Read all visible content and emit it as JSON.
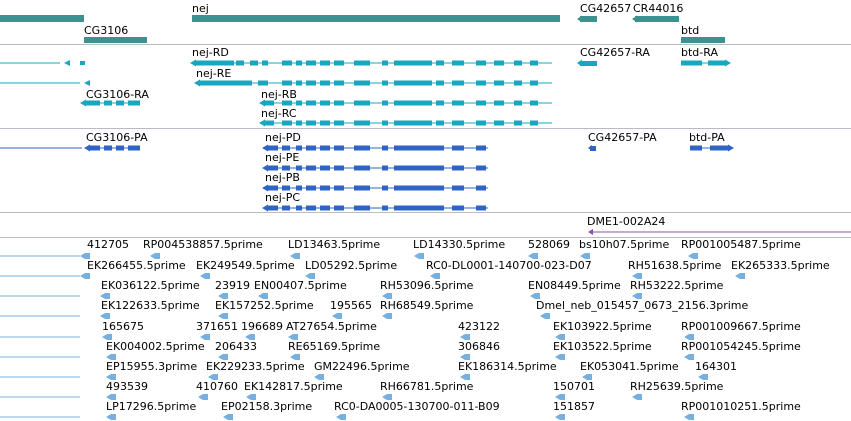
{
  "colors": {
    "gene": "#3f918f",
    "transcript": "#1ba6bf",
    "protein": "#2f63c4",
    "feature": "#8b4fb0",
    "est": "#77b0df",
    "separator": "#b9bcc3"
  },
  "genes": {
    "labels": [
      "nej",
      "CG3106",
      "CG42657",
      "CR44016",
      "btd"
    ]
  },
  "transcripts": {
    "labels": [
      "nej-RD",
      "CG42657-RA",
      "btd-RA",
      "nej-RE",
      "CG3106-RA",
      "nej-RB",
      "nej-RC"
    ]
  },
  "proteins": {
    "labels": [
      "CG3106-PA",
      "nej-PD",
      "CG42657-PA",
      "btd-PA",
      "nej-PE",
      "nej-PB",
      "nej-PC"
    ]
  },
  "features": {
    "labels": [
      "DME1-002A24"
    ]
  },
  "ests": {
    "rows": [
      [
        "412705",
        "RP004538857.5prime",
        "LD13463.5prime",
        "LD14330.5prime",
        "528069",
        "bs10h07.5prime",
        "RP001005487.5prime"
      ],
      [
        "EK266455.5prime",
        "EK249549.5prime",
        "LD05292.5prime",
        "RC0-DL0001-140700-023-D07",
        "RH51638.5prime",
        "EK265333.5prime"
      ],
      [
        "EK036122.5prime",
        "23919",
        "EN00407.5prime",
        "RH53096.5prime",
        "EN08449.5prime",
        "RH53222.5prime"
      ],
      [
        "EK122633.5prime",
        "EK157252.5prime",
        "195565",
        "RH68549.5prime",
        "Dmel_neb_015457_0673_2156.3prime"
      ],
      [
        "165675",
        "371651",
        "196689",
        "AT27654.5prime",
        "423122",
        "EK103922.5prime",
        "RP001009667.5prime"
      ],
      [
        "EK004002.5prime",
        "206433",
        "RE65169.5prime",
        "306846",
        "EK103522.5prime",
        "RP001054245.5prime"
      ],
      [
        "EP15955.3prime",
        "EK229233.5prime",
        "GM22496.5prime",
        "EK186314.5prime",
        "EK053041.5prime",
        "164301"
      ],
      [
        "493539",
        "410760",
        "EK142817.5prime",
        "RH66781.5prime",
        "150701",
        "RH25639.5prime"
      ],
      [
        "LP17296.5prime",
        "EP02158.3prime",
        "RC0-DA0005-130700-011-B09",
        "151857",
        "RP001010251.5prime"
      ]
    ]
  }
}
